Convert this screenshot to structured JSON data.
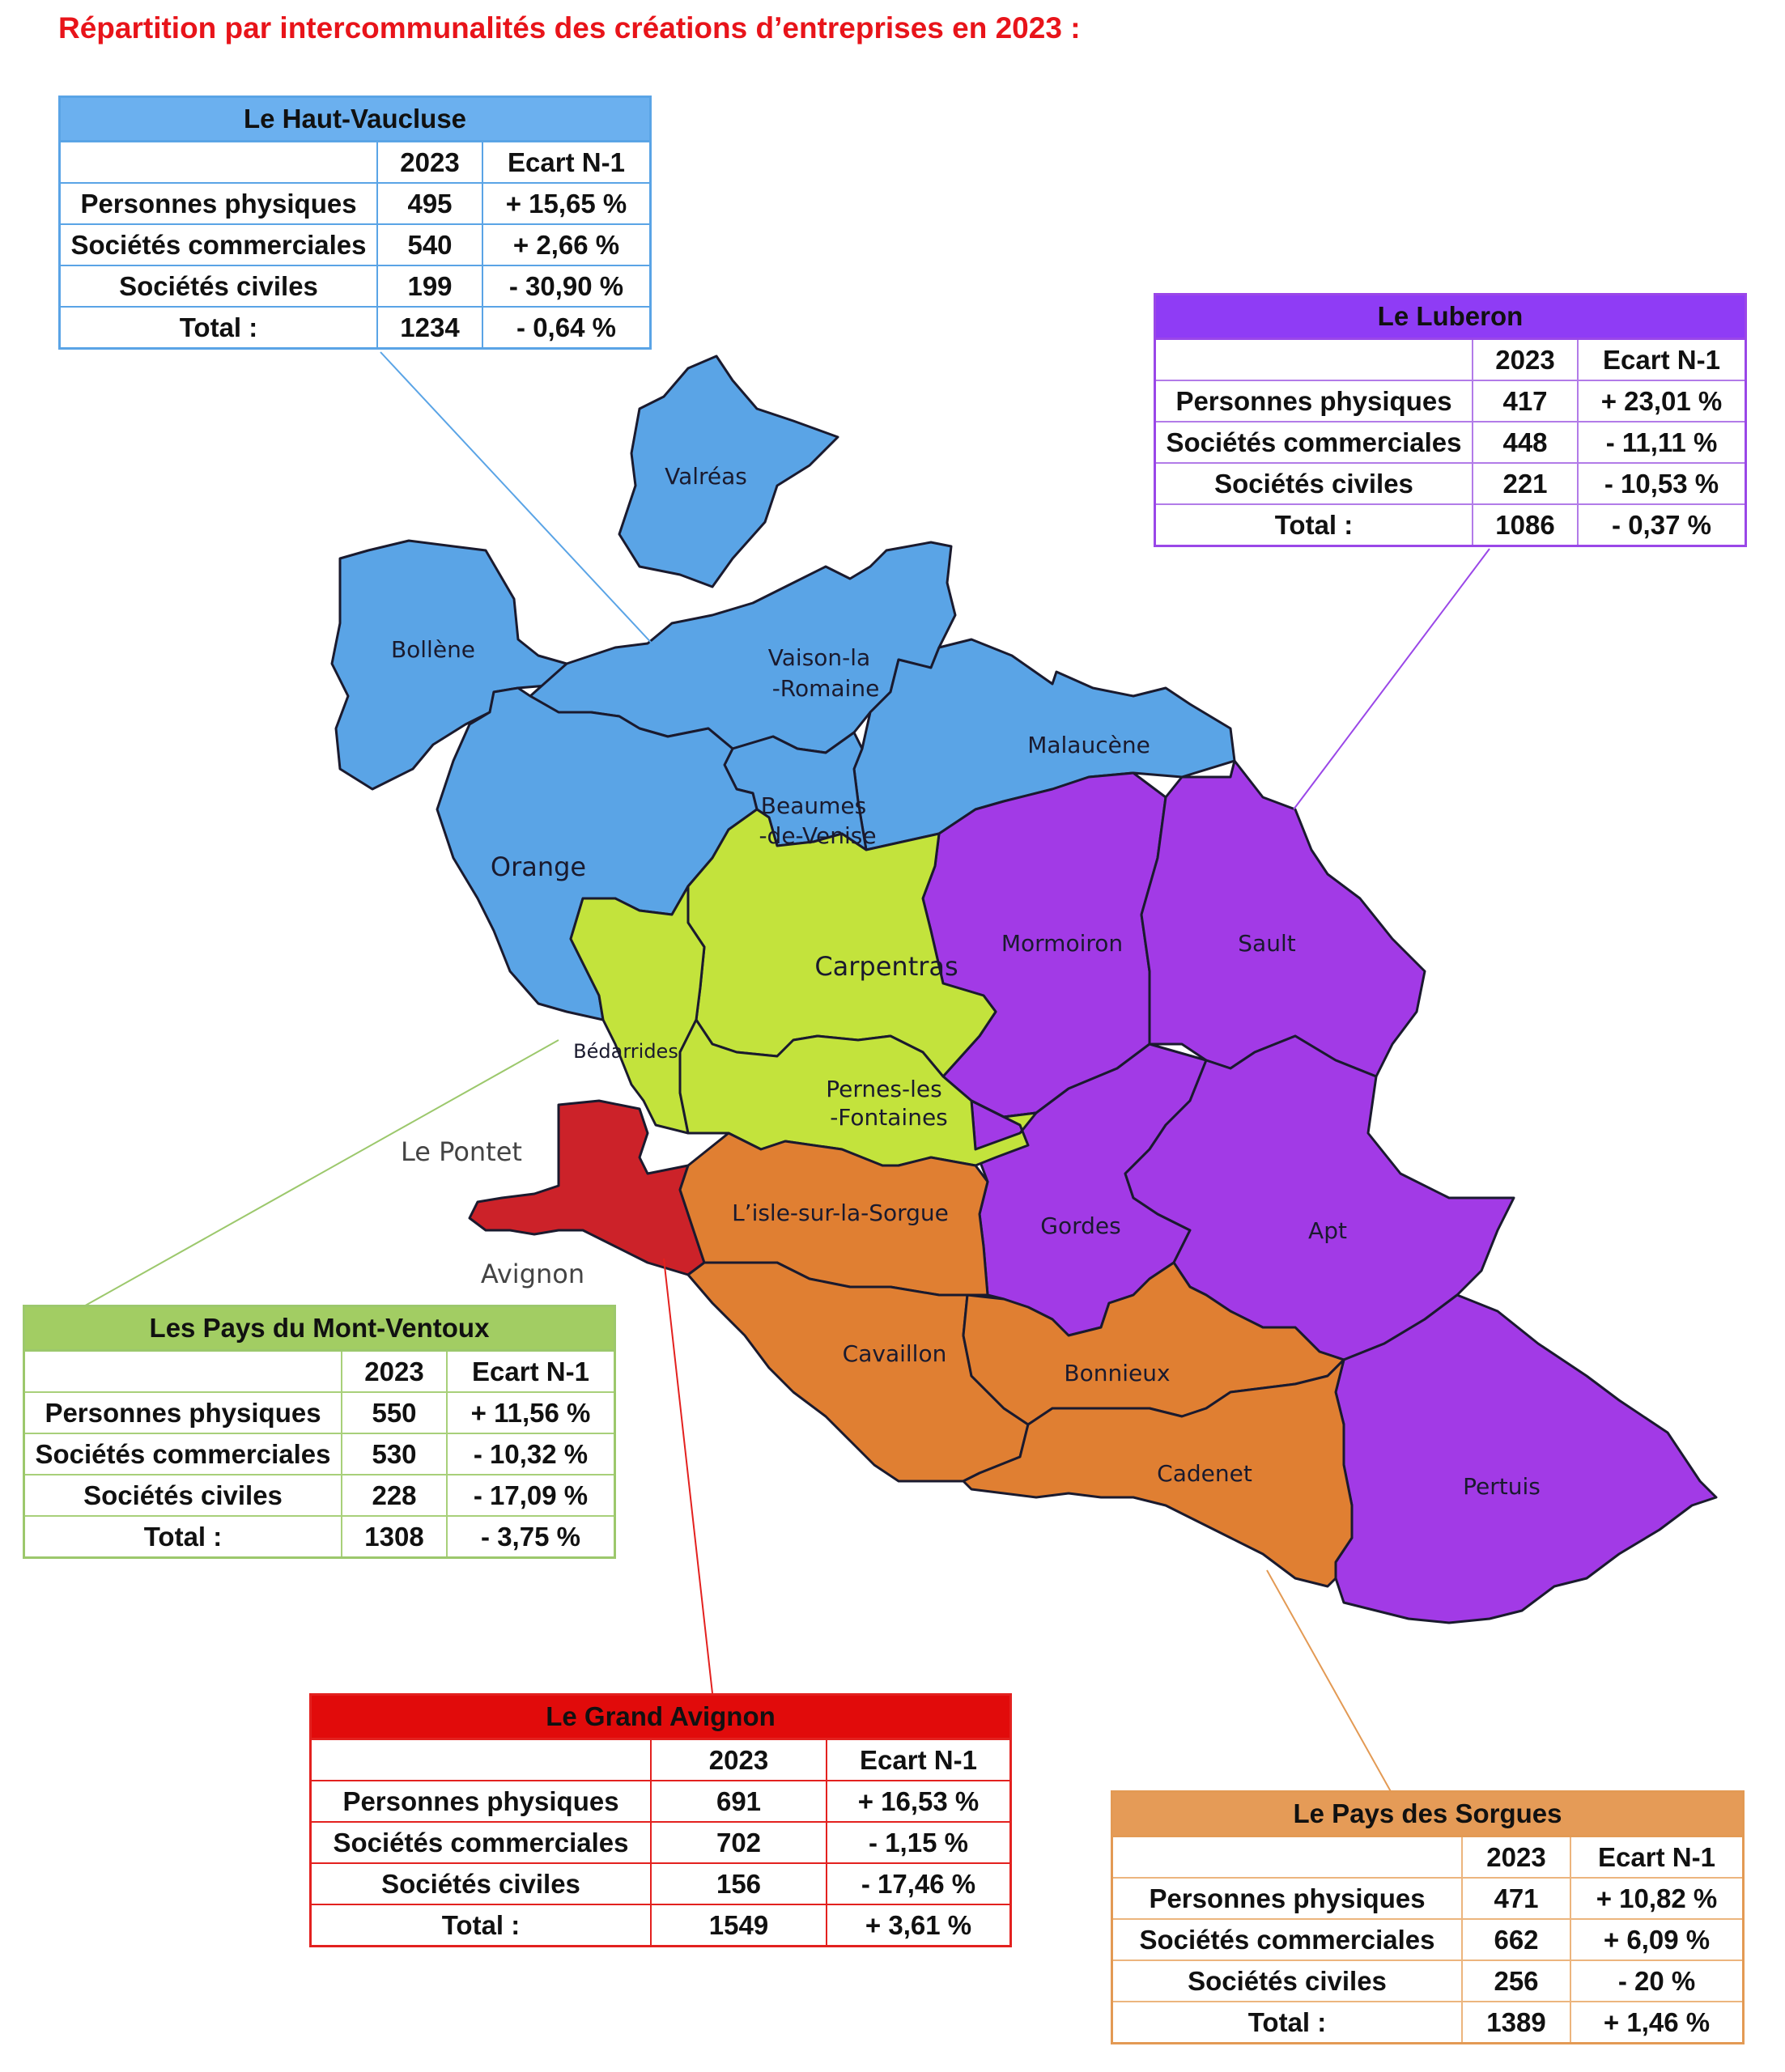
{
  "title": "Répartition par intercommunalités des créations d’entreprises en 2023 :",
  "colors": {
    "haut_vaucluse": "#5aa4e6",
    "luberon": "#a23ae6",
    "mont_ventoux": "#c3e33c",
    "grand_avignon": "#cc2229",
    "pays_sorgues": "#e07f32"
  },
  "map_labels": {
    "valreas": "Valréas",
    "bollene": "Bollène",
    "vaison_l1": "Vaison-la",
    "vaison_l2": "-Romaine",
    "malaucene": "Malaucène",
    "beaumes_l1": "Beaumes",
    "beaumes_l2": "-de-Venise",
    "orange": "Orange",
    "mormoiron": "Mormoiron",
    "sault": "Sault",
    "carpentras": "Carpentras",
    "bedarrides": "Bédarrides",
    "pernes_l1": "Pernes-les",
    "pernes_l2": "-Fontaines",
    "le_pontet": "Le Pontet",
    "avignon": "Avignon",
    "isle": "L’isle-sur-la-Sorgue",
    "gordes": "Gordes",
    "apt": "Apt",
    "cavaillon": "Cavaillon",
    "bonnieux": "Bonnieux",
    "cadenet": "Cadenet",
    "pertuis": "Pertuis"
  },
  "col_year": "2023",
  "col_ecart": "Ecart N-1",
  "row_labels": {
    "pp": "Personnes physiques",
    "sc": "Sociétés commerciales",
    "sciv": "Sociétés civiles",
    "total": "Total :"
  },
  "tables": {
    "haut_vaucluse": {
      "name": "Le Haut-Vaucluse",
      "pp": [
        "495",
        "+ 15,65 %"
      ],
      "sc": [
        "540",
        "+ 2,66 %"
      ],
      "sciv": [
        "199",
        "- 30,90 %"
      ],
      "total": [
        "1234",
        "- 0,64 %"
      ]
    },
    "luberon": {
      "name": "Le Luberon",
      "pp": [
        "417",
        "+ 23,01 %"
      ],
      "sc": [
        "448",
        "- 11,11 %"
      ],
      "sciv": [
        "221",
        "- 10,53 %"
      ],
      "total": [
        "1086",
        "- 0,37 %"
      ]
    },
    "mont_ventoux": {
      "name": "Les Pays du Mont-Ventoux",
      "pp": [
        "550",
        "+ 11,56 %"
      ],
      "sc": [
        "530",
        "- 10,32 %"
      ],
      "sciv": [
        "228",
        "- 17,09 %"
      ],
      "total": [
        "1308",
        "- 3,75 %"
      ]
    },
    "grand_avignon": {
      "name": "Le Grand Avignon",
      "pp": [
        "691",
        "+ 16,53 %"
      ],
      "sc": [
        "702",
        "- 1,15 %"
      ],
      "sciv": [
        "156",
        "- 17,46 %"
      ],
      "total": [
        "1549",
        "+ 3,61 %"
      ]
    },
    "pays_sorgues": {
      "name": "Le Pays des Sorgues",
      "pp": [
        "471",
        "+ 10,82 %"
      ],
      "sc": [
        "662",
        "+ 6,09 %"
      ],
      "sciv": [
        "256",
        "- 20 %"
      ],
      "total": [
        "1389",
        "+ 1,46 %"
      ]
    }
  }
}
